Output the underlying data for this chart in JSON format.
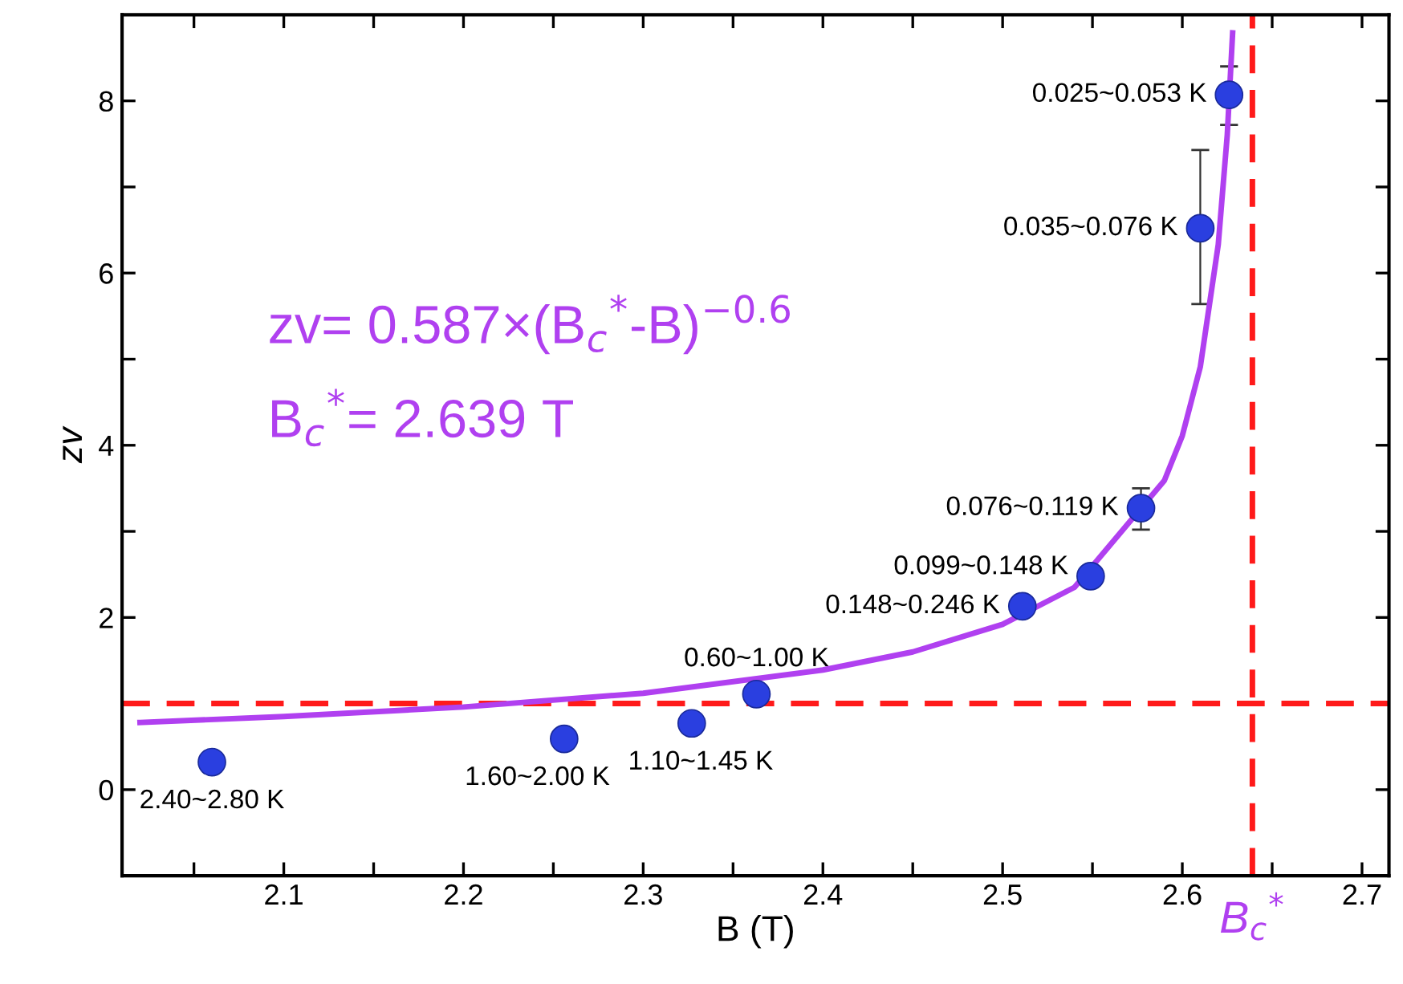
{
  "chart_data": {
    "type": "scatter",
    "xlabel": "B (T)",
    "ylabel": "zv",
    "xlim": [
      2.01,
      2.715
    ],
    "ylim": [
      -1,
      9
    ],
    "xticks": [
      {
        "value": 2.05,
        "label": null
      },
      2.1,
      {
        "value": 2.15,
        "label": null
      },
      2.2,
      {
        "value": 2.25,
        "label": null
      },
      2.3,
      {
        "value": 2.35,
        "label": null
      },
      2.4,
      {
        "value": 2.45,
        "label": null
      },
      2.5,
      {
        "value": 2.55,
        "label": null
      },
      2.6,
      {
        "value": 2.65,
        "label": null
      },
      2.7
    ],
    "yticks": [
      0,
      {
        "value": 1,
        "label": null
      },
      2,
      {
        "value": 3,
        "label": null
      },
      4,
      {
        "value": 5,
        "label": null
      },
      6,
      {
        "value": 7,
        "label": null
      },
      8
    ],
    "grid": false,
    "marker": "circle",
    "series": [
      {
        "color": "#2a3fe0",
        "x": [
          2.06,
          2.256,
          2.327,
          2.363,
          2.511,
          2.549,
          2.577,
          2.61,
          2.626
        ],
        "values": [
          0.32,
          0.59,
          0.77,
          1.11,
          2.13,
          2.48,
          3.27,
          6.52,
          8.07
        ],
        "errors": [
          null,
          null,
          null,
          null,
          null,
          null,
          [
            3.02,
            3.5
          ],
          [
            5.64,
            7.43
          ],
          [
            7.72,
            8.4
          ]
        ]
      },
      {
        "type": "line",
        "color": "#b040f0",
        "line_style": "solid",
        "marker": "none",
        "x": [
          2.02,
          2.1,
          2.2,
          2.3,
          2.4,
          2.45,
          2.5,
          2.54,
          2.59,
          2.6,
          2.61,
          2.62,
          2.625,
          2.628
        ],
        "values": [
          0.78,
          0.85,
          0.96,
          1.12,
          1.39,
          1.6,
          1.92,
          2.35,
          3.59,
          4.11,
          4.91,
          6.33,
          7.6,
          8.79
        ]
      }
    ],
    "ref_lines": [
      {
        "axis": "y",
        "value": 1,
        "color": "#ff1a1a",
        "line_style": "dashed"
      },
      {
        "axis": "x",
        "value": 2.639,
        "label": "B$_{c}$$^{*}$",
        "color": "#ff1a1a",
        "line_style": "dashed"
      }
    ],
    "annotations": [
      {
        "text": "2.40~2.80 K",
        "x": 2.06,
        "y": 0.32
      },
      {
        "text": "1.60~2.00 K",
        "x": 2.256,
        "y": 0.59
      },
      {
        "text": "1.10~1.45 K",
        "x": 2.327,
        "y": 0.77
      },
      {
        "text": "0.60~1.00 K",
        "x": 2.363,
        "y": 1.11
      },
      {
        "text": "0.148~0.246 K",
        "x": 2.511,
        "y": 2.13
      },
      {
        "text": "0.099~0.148 K",
        "x": 2.549,
        "y": 2.48
      },
      {
        "text": "0.076~0.119 K",
        "x": 2.577,
        "y": 3.27
      },
      {
        "text": "0.035~0.076 K",
        "x": 2.61,
        "y": 6.52
      },
      {
        "text": "0.025~0.053 K",
        "x": 2.626,
        "y": 8.07
      },
      "zv= 0.587×(B$_{c}$$^{*}$-B)$^{−0.6}$",
      "B$_{c}$$^{*}$= 2.639 T"
    ]
  }
}
